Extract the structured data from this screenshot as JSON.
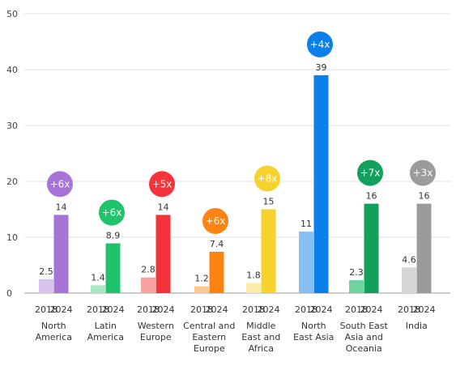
{
  "chart_data": {
    "type": "bar",
    "ylim": [
      0,
      50
    ],
    "yticks": [
      0,
      10,
      20,
      30,
      40,
      50
    ],
    "grid": true,
    "year_labels": [
      "2018",
      "2024"
    ],
    "categories": [
      {
        "label": [
          "North",
          "America"
        ],
        "v2018": 2.5,
        "v2024": 14,
        "v2018_label": "2.5",
        "v2024_label": "14",
        "growth": "+6x",
        "color": "#a574d6",
        "light": "#d8c4ee"
      },
      {
        "label": [
          "Latin",
          "America"
        ],
        "v2018": 1.4,
        "v2024": 8.9,
        "v2018_label": "1.4",
        "v2024_label": "8.9",
        "growth": "+6x",
        "color": "#1fc46a",
        "light": "#a9e6c5"
      },
      {
        "label": [
          "Western",
          "Europe"
        ],
        "v2018": 2.8,
        "v2024": 14,
        "v2018_label": "2.8",
        "v2024_label": "14",
        "growth": "+5x",
        "color": "#f4343a",
        "light": "#f8a3a3"
      },
      {
        "label": [
          "Central and",
          "Eastern",
          "Europe"
        ],
        "v2018": 1.2,
        "v2024": 7.4,
        "v2018_label": "1.2",
        "v2024_label": "7.4",
        "growth": "+6x",
        "color": "#ff8311",
        "light": "#fbc893"
      },
      {
        "label": [
          "Middle",
          "East and",
          "Africa"
        ],
        "v2018": 1.8,
        "v2024": 15,
        "v2018_label": "1.8",
        "v2024_label": "15",
        "growth": "+8x",
        "color": "#f7d12c",
        "light": "#faeba6"
      },
      {
        "label": [
          "North",
          "East Asia"
        ],
        "v2018": 11,
        "v2024": 39,
        "v2018_label": "11",
        "v2024_label": "39",
        "growth": "+4x",
        "color": "#0b7fea",
        "light": "#88bff2"
      },
      {
        "label": [
          "South East",
          "Asia and",
          "Oceania"
        ],
        "v2018": 2.3,
        "v2024": 16,
        "v2018_label": "2.3",
        "v2024_label": "16",
        "growth": "+7x",
        "color": "#13a05a",
        "light": "#6fd39f"
      },
      {
        "label": [
          "India"
        ],
        "v2018": 4.6,
        "v2024": 16,
        "v2018_label": "4.6",
        "v2024_label": "16",
        "growth": "+3x",
        "color": "#9b9b9b",
        "light": "#d6d6d6"
      }
    ]
  }
}
